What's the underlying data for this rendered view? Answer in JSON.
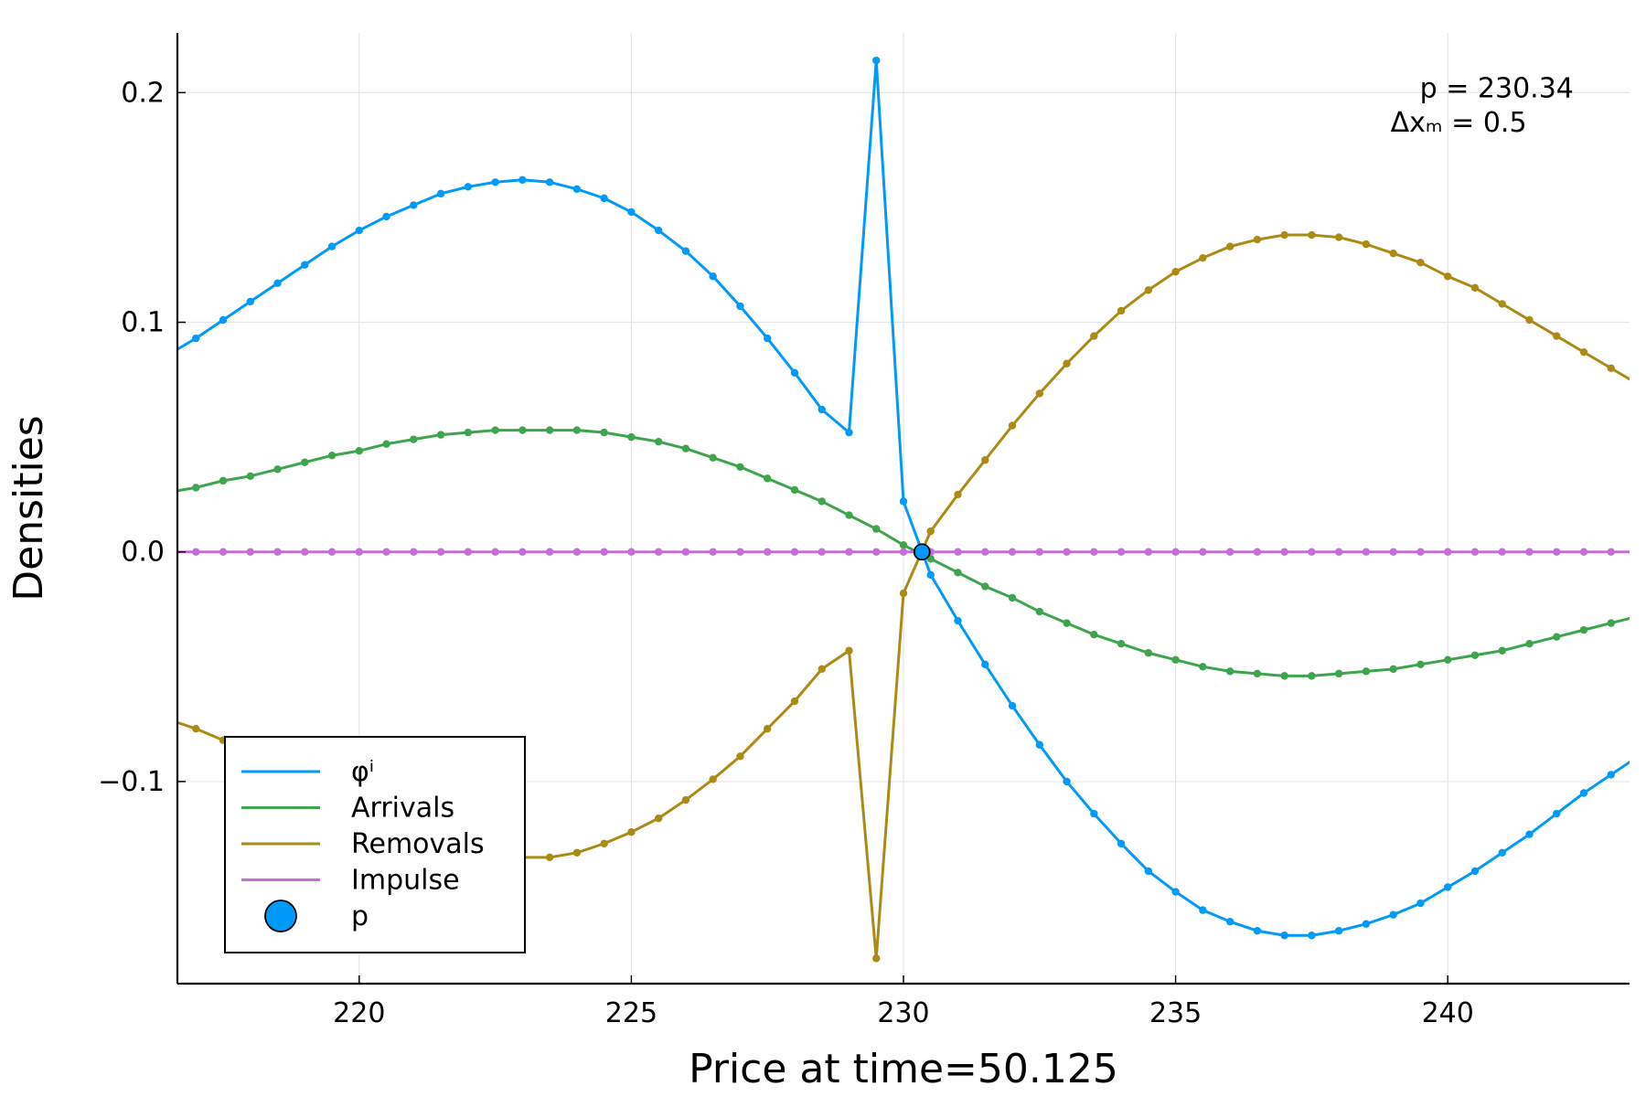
{
  "chart_data": {
    "type": "line",
    "title": "",
    "xlabel": "Price at time=50.125",
    "ylabel": "Densities",
    "xlim": [
      216.66,
      243.34
    ],
    "ylim": [
      -0.188,
      0.226
    ],
    "xticks": [
      220,
      225,
      230,
      235,
      240
    ],
    "xtick_labels": [
      "220",
      "225",
      "230",
      "235",
      "240"
    ],
    "yticks": [
      -0.1,
      0.0,
      0.1,
      0.2
    ],
    "ytick_labels": [
      "−0.1",
      "0.0",
      "0.1",
      "0.2"
    ],
    "grid": true,
    "legend_position": "bottom-left",
    "annotations": [
      {
        "text": "p   = 230.34",
        "x": 240.9,
        "y": 0.198
      },
      {
        "text": "Δxₘ =   0.5",
        "x": 240.2,
        "y": 0.183
      }
    ],
    "colors": {
      "phi": "#009AFA",
      "arrivals": "#3EA44E",
      "removals": "#AB8B16",
      "impulse": "#C271D2"
    },
    "x": [
      216.5,
      217.0,
      217.5,
      218.0,
      218.5,
      219.0,
      219.5,
      220.0,
      220.5,
      221.0,
      221.5,
      222.0,
      222.5,
      223.0,
      223.5,
      224.0,
      224.5,
      225.0,
      225.5,
      226.0,
      226.5,
      227.0,
      227.5,
      228.0,
      228.5,
      229.0,
      229.5,
      230.0,
      230.5,
      231.0,
      231.5,
      232.0,
      232.5,
      233.0,
      233.5,
      234.0,
      234.5,
      235.0,
      235.5,
      236.0,
      236.5,
      237.0,
      237.5,
      238.0,
      238.5,
      239.0,
      239.5,
      240.0,
      240.5,
      241.0,
      241.5,
      242.0,
      242.5,
      243.0,
      243.5
    ],
    "series": [
      {
        "name": "φⁱ",
        "color": "#009AFA",
        "values": [
          0.086,
          0.093,
          0.101,
          0.109,
          0.117,
          0.125,
          0.133,
          0.14,
          0.146,
          0.151,
          0.156,
          0.159,
          0.161,
          0.162,
          0.161,
          0.158,
          0.154,
          0.148,
          0.14,
          0.131,
          0.12,
          0.107,
          0.093,
          0.078,
          0.062,
          0.052,
          0.214,
          0.022,
          -0.01,
          -0.03,
          -0.049,
          -0.067,
          -0.084,
          -0.1,
          -0.114,
          -0.127,
          -0.139,
          -0.148,
          -0.156,
          -0.161,
          -0.165,
          -0.167,
          -0.167,
          -0.165,
          -0.162,
          -0.158,
          -0.153,
          -0.146,
          -0.139,
          -0.131,
          -0.123,
          -0.114,
          -0.105,
          -0.097,
          -0.089
        ]
      },
      {
        "name": "Arrivals",
        "color": "#3EA44E",
        "values": [
          0.026,
          0.028,
          0.031,
          0.033,
          0.036,
          0.039,
          0.042,
          0.044,
          0.047,
          0.049,
          0.051,
          0.052,
          0.053,
          0.053,
          0.053,
          0.053,
          0.052,
          0.05,
          0.048,
          0.045,
          0.041,
          0.037,
          0.032,
          0.027,
          0.022,
          0.016,
          0.01,
          0.003,
          -0.003,
          -0.009,
          -0.015,
          -0.02,
          -0.026,
          -0.031,
          -0.036,
          -0.04,
          -0.044,
          -0.047,
          -0.05,
          -0.052,
          -0.053,
          -0.054,
          -0.054,
          -0.053,
          -0.052,
          -0.051,
          -0.049,
          -0.047,
          -0.045,
          -0.043,
          -0.04,
          -0.037,
          -0.034,
          -0.031,
          -0.028
        ]
      },
      {
        "name": "Removals",
        "color": "#AB8B16",
        "values": [
          -0.073,
          -0.077,
          -0.082,
          -0.087,
          -0.092,
          -0.097,
          -0.102,
          -0.107,
          -0.112,
          -0.117,
          -0.122,
          -0.126,
          -0.13,
          -0.133,
          -0.133,
          -0.131,
          -0.127,
          -0.122,
          -0.116,
          -0.108,
          -0.099,
          -0.089,
          -0.077,
          -0.065,
          -0.051,
          -0.043,
          -0.177,
          -0.018,
          0.009,
          0.025,
          0.04,
          0.055,
          0.069,
          0.082,
          0.094,
          0.105,
          0.114,
          0.122,
          0.128,
          0.133,
          0.136,
          0.138,
          0.138,
          0.137,
          0.134,
          0.13,
          0.126,
          0.12,
          0.115,
          0.108,
          0.101,
          0.094,
          0.087,
          0.08,
          0.073
        ]
      },
      {
        "name": "Impulse",
        "color": "#C271D2",
        "values": [
          0,
          0,
          0,
          0,
          0,
          0,
          0,
          0,
          0,
          0,
          0,
          0,
          0,
          0,
          0,
          0,
          0,
          0,
          0,
          0,
          0,
          0,
          0,
          0,
          0,
          0,
          0,
          0,
          0,
          0,
          0,
          0,
          0,
          0,
          0,
          0,
          0,
          0,
          0,
          0,
          0,
          0,
          0,
          0,
          0,
          0,
          0,
          0,
          0,
          0,
          0,
          0,
          0,
          0,
          0
        ]
      }
    ],
    "marker_series": {
      "name": "p",
      "color": "#009AFA",
      "x": 230.34,
      "y": 0.0
    }
  }
}
